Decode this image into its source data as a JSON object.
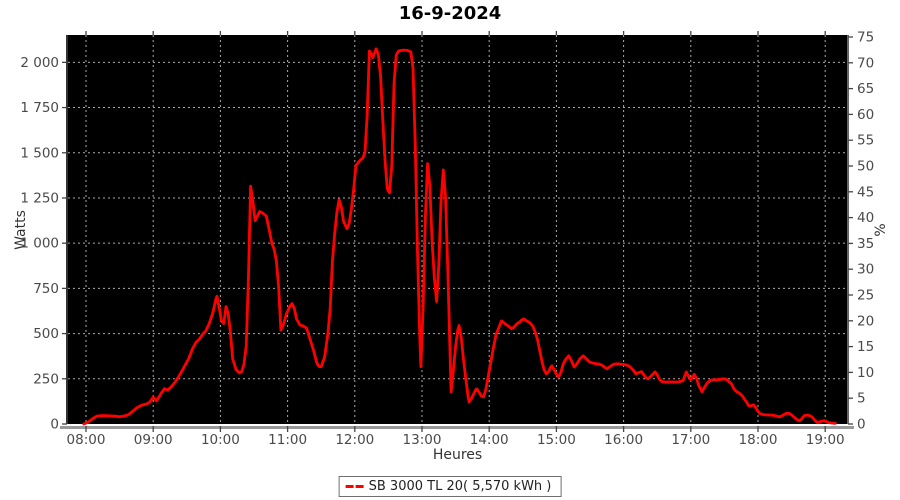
{
  "chart_data": {
    "type": "line",
    "title": "16-9-2024",
    "xlabel": "Heures",
    "ylabel_left": "Watts",
    "ylabel_right": "%",
    "plot_background": "#000000",
    "grid_style": "dashed",
    "grid_color": "#aaaaaa",
    "tick_label_color": "#4a4a4a",
    "xlim_minutes_after_0800": [
      -16,
      680
    ],
    "ylim_left_watts": [
      0,
      2151
    ],
    "ylim_right_percent": [
      0,
      75
    ],
    "x_ticks": [
      {
        "min": 0,
        "label": "08:00"
      },
      {
        "min": 60,
        "label": "09:00"
      },
      {
        "min": 120,
        "label": "10:00"
      },
      {
        "min": 180,
        "label": "11:00"
      },
      {
        "min": 240,
        "label": "12:00"
      },
      {
        "min": 300,
        "label": "13:00"
      },
      {
        "min": 360,
        "label": "14:00"
      },
      {
        "min": 420,
        "label": "15:00"
      },
      {
        "min": 480,
        "label": "16:00"
      },
      {
        "min": 540,
        "label": "17:00"
      },
      {
        "min": 600,
        "label": "18:00"
      },
      {
        "min": 660,
        "label": "19:00"
      }
    ],
    "y_ticks_left": [
      {
        "value": 0,
        "label": "0"
      },
      {
        "value": 250,
        "label": "250"
      },
      {
        "value": 500,
        "label": "500"
      },
      {
        "value": 750,
        "label": "750"
      },
      {
        "value": 1000,
        "label": "1 000"
      },
      {
        "value": 1250,
        "label": "1 250"
      },
      {
        "value": 1500,
        "label": "1 500"
      },
      {
        "value": 1750,
        "label": "1 750"
      },
      {
        "value": 2000,
        "label": "2 000"
      }
    ],
    "y_ticks_right": [
      {
        "value": 0,
        "label": "0"
      },
      {
        "value": 5,
        "label": "5"
      },
      {
        "value": 10,
        "label": "10"
      },
      {
        "value": 15,
        "label": "15"
      },
      {
        "value": 20,
        "label": "20"
      },
      {
        "value": 25,
        "label": "25"
      },
      {
        "value": 30,
        "label": "30"
      },
      {
        "value": 35,
        "label": "35"
      },
      {
        "value": 40,
        "label": "40"
      },
      {
        "value": 45,
        "label": "45"
      },
      {
        "value": 50,
        "label": "50"
      },
      {
        "value": 55,
        "label": "55"
      },
      {
        "value": 60,
        "label": "60"
      },
      {
        "value": 65,
        "label": "65"
      },
      {
        "value": 70,
        "label": "70"
      },
      {
        "value": 75,
        "label": "75"
      }
    ],
    "series": [
      {
        "name": "SB 3000 TL 20( 5,570 kWh )",
        "color": "#ff0000",
        "points": [
          [
            -2,
            0
          ],
          [
            2,
            10
          ],
          [
            6,
            30
          ],
          [
            10,
            44
          ],
          [
            14,
            46
          ],
          [
            18,
            46
          ],
          [
            22,
            45
          ],
          [
            26,
            43
          ],
          [
            30,
            40
          ],
          [
            34,
            44
          ],
          [
            38,
            52
          ],
          [
            42,
            72
          ],
          [
            46,
            92
          ],
          [
            50,
            105
          ],
          [
            54,
            110
          ],
          [
            57,
            122
          ],
          [
            60,
            148
          ],
          [
            63,
            128
          ],
          [
            67,
            168
          ],
          [
            70,
            195
          ],
          [
            73,
            188
          ],
          [
            76,
            205
          ],
          [
            80,
            235
          ],
          [
            84,
            275
          ],
          [
            88,
            320
          ],
          [
            92,
            365
          ],
          [
            95,
            415
          ],
          [
            98,
            450
          ],
          [
            101,
            468
          ],
          [
            104,
            495
          ],
          [
            107,
            515
          ],
          [
            110,
            555
          ],
          [
            113,
            610
          ],
          [
            116,
            690
          ],
          [
            117,
            706
          ],
          [
            119,
            640
          ],
          [
            121,
            570
          ],
          [
            123,
            556
          ],
          [
            125,
            650
          ],
          [
            127,
            610
          ],
          [
            129,
            500
          ],
          [
            131,
            360
          ],
          [
            134,
            300
          ],
          [
            137,
            282
          ],
          [
            139,
            290
          ],
          [
            141,
            330
          ],
          [
            143,
            430
          ],
          [
            145,
            800
          ],
          [
            147,
            1315
          ],
          [
            149,
            1230
          ],
          [
            151,
            1125
          ],
          [
            153,
            1150
          ],
          [
            155,
            1175
          ],
          [
            158,
            1165
          ],
          [
            161,
            1150
          ],
          [
            164,
            1060
          ],
          [
            166,
            1000
          ],
          [
            168,
            965
          ],
          [
            170,
            900
          ],
          [
            172,
            760
          ],
          [
            174,
            520
          ],
          [
            176,
            545
          ],
          [
            179,
            610
          ],
          [
            182,
            650
          ],
          [
            184,
            666
          ],
          [
            186,
            640
          ],
          [
            188,
            580
          ],
          [
            191,
            548
          ],
          [
            194,
            542
          ],
          [
            197,
            530
          ],
          [
            200,
            470
          ],
          [
            203,
            410
          ],
          [
            206,
            340
          ],
          [
            208,
            318
          ],
          [
            210,
            317
          ],
          [
            213,
            370
          ],
          [
            216,
            500
          ],
          [
            218,
            640
          ],
          [
            220,
            900
          ],
          [
            222,
            1050
          ],
          [
            224,
            1170
          ],
          [
            226,
            1240
          ],
          [
            228,
            1200
          ],
          [
            230,
            1120
          ],
          [
            233,
            1080
          ],
          [
            235,
            1110
          ],
          [
            237,
            1190
          ],
          [
            239,
            1300
          ],
          [
            241,
            1430
          ],
          [
            243,
            1445
          ],
          [
            245,
            1460
          ],
          [
            247,
            1468
          ],
          [
            249,
            1500
          ],
          [
            251,
            1700
          ],
          [
            253,
            2063
          ],
          [
            255,
            2045
          ],
          [
            256,
            2026
          ],
          [
            258,
            2058
          ],
          [
            259,
            2075
          ],
          [
            261,
            2045
          ],
          [
            263,
            1920
          ],
          [
            265,
            1680
          ],
          [
            267,
            1460
          ],
          [
            269,
            1300
          ],
          [
            271,
            1278
          ],
          [
            273,
            1430
          ],
          [
            275,
            1880
          ],
          [
            277,
            2040
          ],
          [
            279,
            2063
          ],
          [
            283,
            2068
          ],
          [
            287,
            2066
          ],
          [
            290,
            2058
          ],
          [
            292,
            1970
          ],
          [
            294,
            1530
          ],
          [
            296,
            950
          ],
          [
            298,
            480
          ],
          [
            299,
            317
          ],
          [
            301,
            650
          ],
          [
            303,
            1150
          ],
          [
            305,
            1440
          ],
          [
            307,
            1320
          ],
          [
            309,
            1010
          ],
          [
            311,
            810
          ],
          [
            313,
            677
          ],
          [
            315,
            880
          ],
          [
            317,
            1230
          ],
          [
            319,
            1405
          ],
          [
            321,
            1260
          ],
          [
            323,
            850
          ],
          [
            325,
            400
          ],
          [
            326,
            178
          ],
          [
            328,
            300
          ],
          [
            330,
            430
          ],
          [
            332,
            520
          ],
          [
            333,
            545
          ],
          [
            335,
            480
          ],
          [
            337,
            360
          ],
          [
            339,
            255
          ],
          [
            341,
            160
          ],
          [
            342,
            122
          ],
          [
            344,
            140
          ],
          [
            346,
            165
          ],
          [
            348,
            190
          ],
          [
            349,
            194
          ],
          [
            351,
            175
          ],
          [
            353,
            155
          ],
          [
            355,
            150
          ],
          [
            357,
            190
          ],
          [
            359,
            260
          ],
          [
            362,
            361
          ],
          [
            364,
            430
          ],
          [
            366,
            490
          ],
          [
            368,
            525
          ],
          [
            371,
            570
          ],
          [
            373,
            560
          ],
          [
            375,
            550
          ],
          [
            377,
            542
          ],
          [
            380,
            527
          ],
          [
            382,
            535
          ],
          [
            385,
            555
          ],
          [
            387,
            562
          ],
          [
            389,
            575
          ],
          [
            391,
            582
          ],
          [
            393,
            572
          ],
          [
            395,
            565
          ],
          [
            397,
            555
          ],
          [
            399,
            540
          ],
          [
            401,
            510
          ],
          [
            403,
            470
          ],
          [
            405,
            410
          ],
          [
            407,
            350
          ],
          [
            409,
            300
          ],
          [
            411,
            277
          ],
          [
            413,
            290
          ],
          [
            415,
            315
          ],
          [
            416,
            322
          ],
          [
            418,
            300
          ],
          [
            420,
            275
          ],
          [
            422,
            260
          ],
          [
            424,
            285
          ],
          [
            426,
            330
          ],
          [
            428,
            355
          ],
          [
            431,
            377
          ],
          [
            433,
            355
          ],
          [
            435,
            325
          ],
          [
            436,
            316
          ],
          [
            438,
            330
          ],
          [
            441,
            360
          ],
          [
            444,
            377
          ],
          [
            446,
            365
          ],
          [
            448,
            352
          ],
          [
            450,
            342
          ],
          [
            453,
            336
          ],
          [
            456,
            333
          ],
          [
            459,
            330
          ],
          [
            462,
            320
          ],
          [
            465,
            305
          ],
          [
            468,
            318
          ],
          [
            471,
            330
          ],
          [
            474,
            333
          ],
          [
            477,
            331
          ],
          [
            480,
            329
          ],
          [
            483,
            326
          ],
          [
            486,
            315
          ],
          [
            489,
            295
          ],
          [
            491,
            277
          ],
          [
            493,
            283
          ],
          [
            496,
            290
          ],
          [
            498,
            272
          ],
          [
            500,
            255
          ],
          [
            502,
            250
          ],
          [
            505,
            268
          ],
          [
            508,
            288
          ],
          [
            510,
            272
          ],
          [
            512,
            248
          ],
          [
            514,
            235
          ],
          [
            517,
            232
          ],
          [
            521,
            233
          ],
          [
            525,
            232
          ],
          [
            529,
            233
          ],
          [
            533,
            240
          ],
          [
            536,
            288
          ],
          [
            538,
            262
          ],
          [
            540,
            245
          ],
          [
            542,
            262
          ],
          [
            543,
            275
          ],
          [
            545,
            255
          ],
          [
            547,
            215
          ],
          [
            550,
            178
          ],
          [
            552,
            200
          ],
          [
            555,
            230
          ],
          [
            558,
            242
          ],
          [
            561,
            244
          ],
          [
            564,
            245
          ],
          [
            567,
            248
          ],
          [
            570,
            250
          ],
          [
            572,
            246
          ],
          [
            574,
            235
          ],
          [
            576,
            225
          ],
          [
            578,
            200
          ],
          [
            580,
            183
          ],
          [
            583,
            172
          ],
          [
            586,
            155
          ],
          [
            589,
            128
          ],
          [
            592,
            100
          ],
          [
            594,
            102
          ],
          [
            596,
            106
          ],
          [
            598,
            90
          ],
          [
            600,
            70
          ],
          [
            602,
            56
          ],
          [
            605,
            52
          ],
          [
            608,
            50
          ],
          [
            611,
            50
          ],
          [
            614,
            48
          ],
          [
            617,
            43
          ],
          [
            619,
            39
          ],
          [
            621,
            44
          ],
          [
            624,
            55
          ],
          [
            626,
            60
          ],
          [
            628,
            58
          ],
          [
            630,
            50
          ],
          [
            633,
            33
          ],
          [
            636,
            20
          ],
          [
            637,
            17
          ],
          [
            639,
            28
          ],
          [
            641,
            45
          ],
          [
            643,
            50
          ],
          [
            645,
            48
          ],
          [
            647,
            44
          ],
          [
            649,
            33
          ],
          [
            651,
            18
          ],
          [
            653,
            8
          ],
          [
            655,
            12
          ],
          [
            657,
            16
          ],
          [
            659,
            18
          ],
          [
            661,
            14
          ],
          [
            663,
            8
          ],
          [
            665,
            6
          ],
          [
            667,
            5
          ],
          [
            669,
            4
          ]
        ]
      }
    ]
  }
}
